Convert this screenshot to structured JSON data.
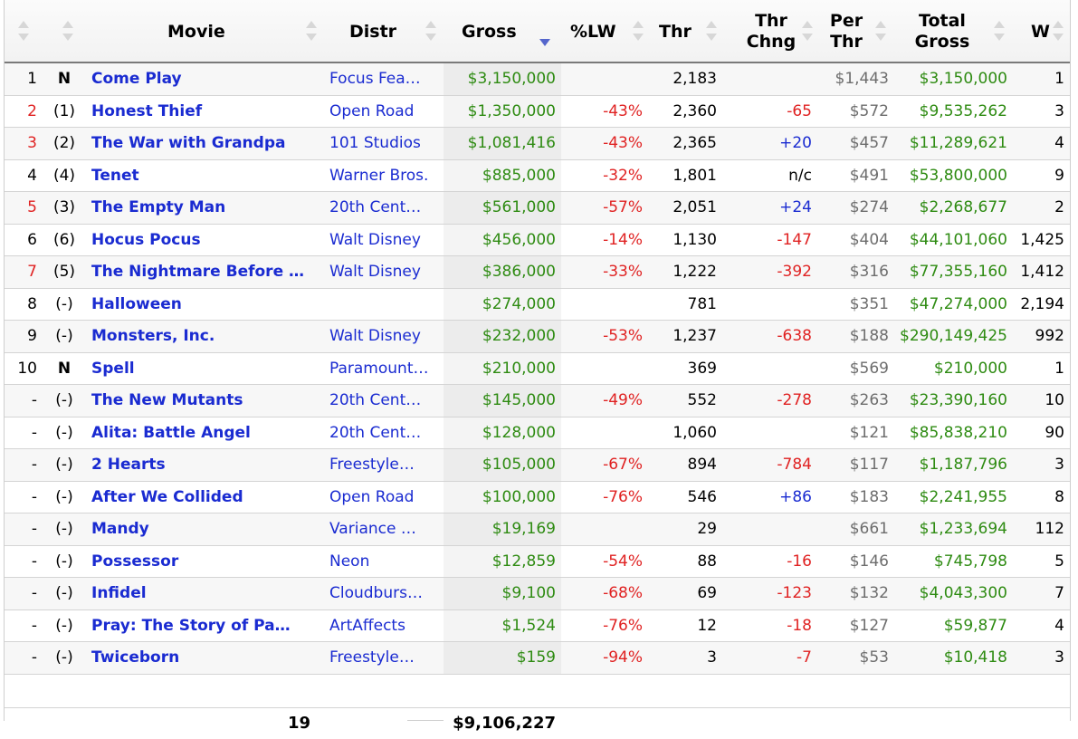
{
  "headers": {
    "movie": "Movie",
    "distr": "Distr",
    "gross": "Gross",
    "lw": "%LW",
    "thr": "Thr",
    "thr_chng_1": "Thr",
    "thr_chng_2": "Chng",
    "per_thr_1": "Per",
    "per_thr_2": "Thr",
    "total_1": "Total",
    "total_2": "Gross",
    "w": "W"
  },
  "sort": {
    "column": "gross",
    "direction": "descending"
  },
  "colors": {
    "link": "#1a2bd1",
    "money": "#2e8b12",
    "negative": "#e02222",
    "positive": "#1a2bd1",
    "muted": "#6d6d6d"
  },
  "rows": [
    {
      "rank": "1",
      "rank_red": false,
      "prev": "N",
      "prev_bold": true,
      "title": "Come Play",
      "distr": "Focus Fea…",
      "gross": "$3,150,000",
      "lw": "",
      "thr": "2,183",
      "chng": "",
      "chng_color": "",
      "per": "$1,443",
      "total": "$3,150,000",
      "w": "1"
    },
    {
      "rank": "2",
      "rank_red": true,
      "prev": "(1)",
      "prev_bold": false,
      "title": "Honest Thief",
      "distr": "Open Road",
      "gross": "$1,350,000",
      "lw": "-43%",
      "thr": "2,360",
      "chng": "-65",
      "chng_color": "red",
      "per": "$572",
      "total": "$9,535,262",
      "w": "3"
    },
    {
      "rank": "3",
      "rank_red": true,
      "prev": "(2)",
      "prev_bold": false,
      "title": "The War with Grandpa",
      "distr": "101 Studios",
      "gross": "$1,081,416",
      "lw": "-43%",
      "thr": "2,365",
      "chng": "+20",
      "chng_color": "blue",
      "per": "$457",
      "total": "$11,289,621",
      "w": "4"
    },
    {
      "rank": "4",
      "rank_red": false,
      "prev": "(4)",
      "prev_bold": false,
      "title": "Tenet",
      "distr": "Warner Bros.",
      "gross": "$885,000",
      "lw": "-32%",
      "thr": "1,801",
      "chng": "n/c",
      "chng_color": "black",
      "per": "$491",
      "total": "$53,800,000",
      "w": "9"
    },
    {
      "rank": "5",
      "rank_red": true,
      "prev": "(3)",
      "prev_bold": false,
      "title": "The Empty Man",
      "distr": "20th Cent…",
      "gross": "$561,000",
      "lw": "-57%",
      "thr": "2,051",
      "chng": "+24",
      "chng_color": "blue",
      "per": "$274",
      "total": "$2,268,677",
      "w": "2"
    },
    {
      "rank": "6",
      "rank_red": false,
      "prev": "(6)",
      "prev_bold": false,
      "title": "Hocus Pocus",
      "distr": "Walt Disney",
      "gross": "$456,000",
      "lw": "-14%",
      "thr": "1,130",
      "chng": "-147",
      "chng_color": "red",
      "per": "$404",
      "total": "$44,101,060",
      "w": "1,425"
    },
    {
      "rank": "7",
      "rank_red": true,
      "prev": "(5)",
      "prev_bold": false,
      "title": "The Nightmare Before …",
      "distr": "Walt Disney",
      "gross": "$386,000",
      "lw": "-33%",
      "thr": "1,222",
      "chng": "-392",
      "chng_color": "red",
      "per": "$316",
      "total": "$77,355,160",
      "w": "1,412"
    },
    {
      "rank": "8",
      "rank_red": false,
      "prev": "(-)",
      "prev_bold": false,
      "title": "Halloween",
      "distr": "",
      "gross": "$274,000",
      "lw": "",
      "thr": "781",
      "chng": "",
      "chng_color": "",
      "per": "$351",
      "total": "$47,274,000",
      "w": "2,194"
    },
    {
      "rank": "9",
      "rank_red": false,
      "prev": "(-)",
      "prev_bold": false,
      "title": "Monsters, Inc.",
      "distr": "Walt Disney",
      "gross": "$232,000",
      "lw": "-53%",
      "thr": "1,237",
      "chng": "-638",
      "chng_color": "red",
      "per": "$188",
      "total": "$290,149,425",
      "w": "992"
    },
    {
      "rank": "10",
      "rank_red": false,
      "prev": "N",
      "prev_bold": true,
      "title": "Spell",
      "distr": "Paramount…",
      "gross": "$210,000",
      "lw": "",
      "thr": "369",
      "chng": "",
      "chng_color": "",
      "per": "$569",
      "total": "$210,000",
      "w": "1"
    },
    {
      "rank": "-",
      "rank_red": false,
      "prev": "(-)",
      "prev_bold": false,
      "title": "The New Mutants",
      "distr": "20th Cent…",
      "gross": "$145,000",
      "lw": "-49%",
      "thr": "552",
      "chng": "-278",
      "chng_color": "red",
      "per": "$263",
      "total": "$23,390,160",
      "w": "10"
    },
    {
      "rank": "-",
      "rank_red": false,
      "prev": "(-)",
      "prev_bold": false,
      "title": "Alita: Battle Angel",
      "distr": "20th Cent…",
      "gross": "$128,000",
      "lw": "",
      "thr": "1,060",
      "chng": "",
      "chng_color": "",
      "per": "$121",
      "total": "$85,838,210",
      "w": "90"
    },
    {
      "rank": "-",
      "rank_red": false,
      "prev": "(-)",
      "prev_bold": false,
      "title": "2 Hearts",
      "distr": "Freestyle…",
      "gross": "$105,000",
      "lw": "-67%",
      "thr": "894",
      "chng": "-784",
      "chng_color": "red",
      "per": "$117",
      "total": "$1,187,796",
      "w": "3"
    },
    {
      "rank": "-",
      "rank_red": false,
      "prev": "(-)",
      "prev_bold": false,
      "title": "After We Collided",
      "distr": "Open Road",
      "gross": "$100,000",
      "lw": "-76%",
      "thr": "546",
      "chng": "+86",
      "chng_color": "blue",
      "per": "$183",
      "total": "$2,241,955",
      "w": "8"
    },
    {
      "rank": "-",
      "rank_red": false,
      "prev": "(-)",
      "prev_bold": false,
      "title": "Mandy",
      "distr": "Variance …",
      "gross": "$19,169",
      "lw": "",
      "thr": "29",
      "chng": "",
      "chng_color": "",
      "per": "$661",
      "total": "$1,233,694",
      "w": "112"
    },
    {
      "rank": "-",
      "rank_red": false,
      "prev": "(-)",
      "prev_bold": false,
      "title": "Possessor",
      "distr": "Neon",
      "gross": "$12,859",
      "lw": "-54%",
      "thr": "88",
      "chng": "-16",
      "chng_color": "red",
      "per": "$146",
      "total": "$745,798",
      "w": "5"
    },
    {
      "rank": "-",
      "rank_red": false,
      "prev": "(-)",
      "prev_bold": false,
      "title": "Infidel",
      "distr": "Cloudburs…",
      "gross": "$9,100",
      "lw": "-68%",
      "thr": "69",
      "chng": "-123",
      "chng_color": "red",
      "per": "$132",
      "total": "$4,043,300",
      "w": "7"
    },
    {
      "rank": "-",
      "rank_red": false,
      "prev": "(-)",
      "prev_bold": false,
      "title": "Pray: The Story of Pa…",
      "distr": "ArtAffects",
      "gross": "$1,524",
      "lw": "-76%",
      "thr": "12",
      "chng": "-18",
      "chng_color": "red",
      "per": "$127",
      "total": "$59,877",
      "w": "4"
    },
    {
      "rank": "-",
      "rank_red": false,
      "prev": "(-)",
      "prev_bold": false,
      "title": "Twiceborn",
      "distr": "Freestyle…",
      "gross": "$159",
      "lw": "-94%",
      "thr": "3",
      "chng": "-7",
      "chng_color": "red",
      "per": "$53",
      "total": "$10,418",
      "w": "3"
    }
  ],
  "footer": {
    "count": "19",
    "gross_total": "$9,106,227"
  }
}
